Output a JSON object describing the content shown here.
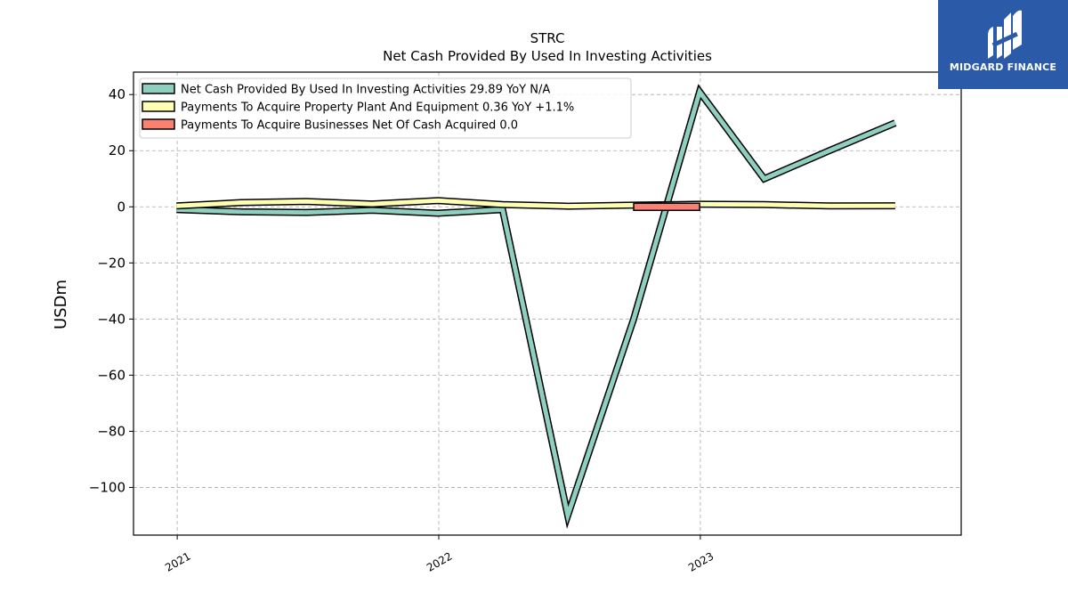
{
  "brand": {
    "name": "MIDGARD FINANCE",
    "color": "#2b5aa8"
  },
  "chart_data": {
    "type": "line",
    "title": "STRC",
    "subtitle": "Net Cash Provided By Used In Investing Activities",
    "ylabel": "USDm",
    "xlabel": "",
    "x_tick_labels": [
      "2021",
      "2022",
      "2023"
    ],
    "y_tick_labels": [
      "40",
      "20",
      "0",
      "−20",
      "−40",
      "−60",
      "−80",
      "−100"
    ],
    "y_ticks": [
      40,
      20,
      0,
      -20,
      -40,
      -60,
      -80,
      -100
    ],
    "ylim": [
      -117,
      48
    ],
    "xlim": [
      "2020-11-01",
      "2023-12-31"
    ],
    "grid": true,
    "legend_position": "top-left",
    "series": [
      {
        "name": "Net Cash Provided By Used In Investing Activities",
        "legend_label": "Net Cash Provided By Used In Investing Activities  29.89 YoY N/A",
        "color": "#8ecfc0",
        "style": "line",
        "points": [
          {
            "x": "2020-12-31",
            "y": -1.0
          },
          {
            "x": "2021-03-31",
            "y": -1.8
          },
          {
            "x": "2021-06-30",
            "y": -2.0
          },
          {
            "x": "2021-09-30",
            "y": -1.2
          },
          {
            "x": "2021-12-31",
            "y": -2.3
          },
          {
            "x": "2022-03-31",
            "y": -1.0
          },
          {
            "x": "2022-06-30",
            "y": -110.0
          },
          {
            "x": "2022-09-30",
            "y": -40.0
          },
          {
            "x": "2022-12-31",
            "y": 41.0
          },
          {
            "x": "2023-03-31",
            "y": 10.0
          },
          {
            "x": "2023-06-30",
            "y": 20.0
          },
          {
            "x": "2023-09-30",
            "y": 29.89
          }
        ]
      },
      {
        "name": "Payments To Acquire Property Plant And Equipment",
        "legend_label": "Payments To Acquire Property Plant And Equipment  0.36 YoY +1.1%",
        "color": "#ffffb3",
        "style": "line",
        "points": [
          {
            "x": "2020-12-31",
            "y": 0.3
          },
          {
            "x": "2021-03-31",
            "y": 1.5
          },
          {
            "x": "2021-06-30",
            "y": 1.9
          },
          {
            "x": "2021-09-30",
            "y": 1.0
          },
          {
            "x": "2021-12-31",
            "y": 2.2
          },
          {
            "x": "2022-03-31",
            "y": 0.8
          },
          {
            "x": "2022-06-30",
            "y": 0.2
          },
          {
            "x": "2022-09-30",
            "y": 0.6
          },
          {
            "x": "2022-12-31",
            "y": 0.9
          },
          {
            "x": "2023-03-31",
            "y": 0.8
          },
          {
            "x": "2023-06-30",
            "y": 0.3
          },
          {
            "x": "2023-09-30",
            "y": 0.36
          }
        ]
      },
      {
        "name": "Payments To Acquire Businesses Net Of Cash Acquired",
        "legend_label": "Payments To Acquire Businesses Net Of Cash Acquired  0.0",
        "color": "#fa8072",
        "style": "bar",
        "points": [
          {
            "x0": "2022-09-30",
            "x1": "2022-12-31",
            "y": 0.0
          }
        ]
      }
    ]
  }
}
